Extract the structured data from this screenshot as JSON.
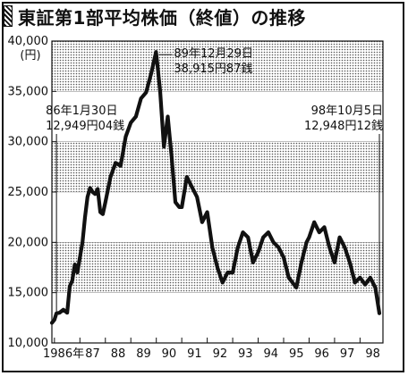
{
  "chart_data": {
    "type": "line",
    "title": "東証第1部平均株価（終値）の推移",
    "y_unit": "(円)",
    "ylim": [
      10000,
      40000
    ],
    "y_ticks": [
      "10,000",
      "15,000",
      "20,000",
      "25,000",
      "30,000",
      "35,000",
      "40,000"
    ],
    "y_tick_values": [
      10000,
      15000,
      20000,
      25000,
      30000,
      35000,
      40000
    ],
    "x_ticks": [
      "1986年",
      "87",
      "88",
      "89",
      "90",
      "91",
      "92",
      "93",
      "94",
      "95",
      "96",
      "97",
      "98"
    ],
    "x_tick_values": [
      1986,
      1987,
      1988,
      1989,
      1990,
      1991,
      1992,
      1993,
      1994,
      1995,
      1996,
      1997,
      1998
    ],
    "xlim": [
      1985.9,
      1998.9
    ],
    "shaded_bands": [
      [
        15000,
        20000
      ],
      [
        25000,
        30000
      ],
      [
        35000,
        40000
      ]
    ],
    "series": [
      {
        "name": "",
        "x": [
          1985.9,
          1986.0,
          1986.08,
          1986.2,
          1986.35,
          1986.5,
          1986.6,
          1986.7,
          1986.8,
          1986.9,
          1987.0,
          1987.1,
          1987.2,
          1987.3,
          1987.4,
          1987.5,
          1987.6,
          1987.7,
          1987.8,
          1987.9,
          1988.0,
          1988.2,
          1988.4,
          1988.6,
          1988.8,
          1989.0,
          1989.2,
          1989.4,
          1989.6,
          1989.8,
          1989.99,
          1990.05,
          1990.15,
          1990.3,
          1990.45,
          1990.6,
          1990.75,
          1990.9,
          1991.0,
          1991.2,
          1991.4,
          1991.6,
          1991.8,
          1992.0,
          1992.2,
          1992.4,
          1992.6,
          1992.8,
          1993.0,
          1993.2,
          1993.4,
          1993.6,
          1993.8,
          1994.0,
          1994.2,
          1994.4,
          1994.6,
          1994.8,
          1995.0,
          1995.2,
          1995.5,
          1995.7,
          1995.9,
          1996.0,
          1996.2,
          1996.4,
          1996.6,
          1996.8,
          1997.0,
          1997.2,
          1997.4,
          1997.6,
          1997.8,
          1998.0,
          1998.2,
          1998.4,
          1998.6,
          1998.76
        ],
        "values": [
          12000,
          12300,
          12949,
          13000,
          13300,
          13000,
          15600,
          16200,
          17800,
          17000,
          18500,
          20000,
          22500,
          24500,
          25400,
          25000,
          24800,
          25300,
          23000,
          22800,
          24000,
          26500,
          27900,
          27600,
          30500,
          31900,
          32500,
          34300,
          34900,
          36800,
          38915,
          37500,
          35000,
          29500,
          32500,
          28500,
          24000,
          23500,
          23500,
          26500,
          25500,
          24500,
          22000,
          23000,
          19500,
          17500,
          16000,
          17000,
          17000,
          19500,
          21000,
          20500,
          18000,
          19000,
          20500,
          21000,
          20000,
          19500,
          18500,
          16500,
          15500,
          18000,
          20000,
          20500,
          22000,
          21000,
          21500,
          19500,
          18000,
          20500,
          19500,
          18000,
          16000,
          16500,
          15800,
          16500,
          15500,
          12948
        ]
      }
    ],
    "annotations": [
      {
        "label": "86年1月30日",
        "value_text": "12,949円04銭",
        "x": 1986.08,
        "y": 12949
      },
      {
        "label": "89年12月29日",
        "value_text": "38,915円87銭",
        "x": 1989.99,
        "y": 38915
      },
      {
        "label": "98年10月5日",
        "value_text": "12,948円12銭",
        "x": 1998.76,
        "y": 12948
      }
    ]
  }
}
